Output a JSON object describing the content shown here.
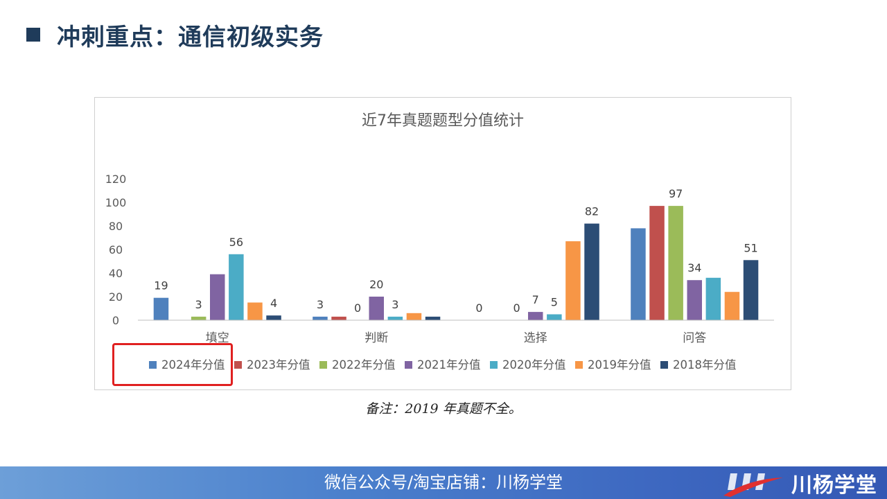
{
  "slide": {
    "title": "冲刺重点：通信初级实务",
    "note": "备注：2019 年真题不全。",
    "footer_text": "微信公众号/淘宝店铺：川杨学堂",
    "logo_text": "川杨学堂"
  },
  "colors": {
    "title": "#1f3b5a",
    "highlight": "#e02020",
    "series": [
      "#4f81bd",
      "#c0504d",
      "#9bbb59",
      "#8064a2",
      "#4bacc6",
      "#f79646",
      "#2c4d75"
    ]
  },
  "chart_data": {
    "type": "bar",
    "title": "近7年真题题型分值统计",
    "categories": [
      "填空",
      "判断",
      "选择",
      "问答"
    ],
    "ylim": [
      0,
      120
    ],
    "yticks": [
      0,
      20,
      40,
      60,
      80,
      100,
      120
    ],
    "grid": false,
    "legend_position": "bottom",
    "series": [
      {
        "name": "2024年分值",
        "values": [
          19,
          3,
          0,
          78
        ],
        "labels": [
          "19",
          "3",
          "0",
          ""
        ]
      },
      {
        "name": "2023年分值",
        "values": [
          0,
          3,
          0,
          97
        ],
        "labels": [
          "",
          "",
          "",
          ""
        ]
      },
      {
        "name": "2022年分值",
        "values": [
          3,
          0,
          0,
          97
        ],
        "labels": [
          "3",
          "0",
          "0",
          "97"
        ]
      },
      {
        "name": "2021年分值",
        "values": [
          39,
          20,
          7,
          34
        ],
        "labels": [
          "",
          "20",
          "7",
          "34"
        ]
      },
      {
        "name": "2020年分值",
        "values": [
          56,
          3,
          5,
          36
        ],
        "labels": [
          "56",
          "3",
          "5",
          ""
        ]
      },
      {
        "name": "2019年分值",
        "values": [
          15,
          6,
          67,
          24
        ],
        "labels": [
          "",
          "",
          "",
          ""
        ]
      },
      {
        "name": "2018年分值",
        "values": [
          4,
          3,
          82,
          51
        ],
        "labels": [
          "4",
          "",
          "82",
          "51"
        ]
      }
    ]
  }
}
